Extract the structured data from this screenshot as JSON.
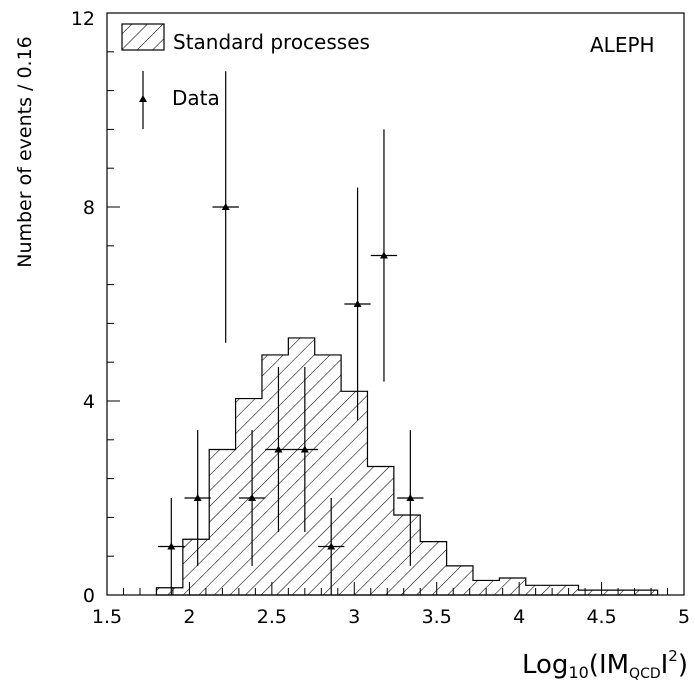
{
  "chart_data": {
    "type": "bar",
    "experiment_label": "ALEPH",
    "xlabel": "Log",
    "xlabel_sub": "10",
    "xlabel_open": "(IM",
    "xlabel_sub2": "QCD",
    "xlabel_close": "I",
    "xlabel_sup": "2",
    "xlabel_end": ")",
    "ylabel": "Number of events / 0.16",
    "xlim": [
      1.5,
      5
    ],
    "ylim": [
      0,
      12
    ],
    "x_ticks": [
      "1.5",
      "2",
      "2.5",
      "3",
      "3.5",
      "4",
      "4.5",
      "5"
    ],
    "x_tick_values": [
      1.5,
      2,
      2.5,
      3,
      3.5,
      4,
      4.5,
      5
    ],
    "y_ticks": [
      "0",
      "4",
      "8",
      "12"
    ],
    "y_tick_values": [
      0,
      4,
      8,
      12
    ],
    "legend": [
      {
        "label": "Standard processes",
        "kind": "hatched-histogram"
      },
      {
        "label": "Data",
        "kind": "points-with-errors"
      }
    ],
    "histogram": {
      "name": "Standard processes",
      "bin_edges": [
        1.8,
        1.96,
        2.12,
        2.28,
        2.44,
        2.6,
        2.76,
        2.92,
        3.08,
        3.24,
        3.4,
        3.56,
        3.72,
        3.88,
        4.04,
        4.2,
        4.36,
        4.52,
        4.68,
        4.84
      ],
      "values": [
        0.15,
        1.15,
        3.0,
        4.05,
        4.95,
        5.3,
        4.95,
        4.2,
        2.65,
        1.65,
        1.1,
        0.6,
        0.3,
        0.35,
        0.2,
        0.2,
        0.1,
        0.1,
        0.1
      ]
    },
    "data_points": {
      "name": "Data",
      "x": [
        1.89,
        2.05,
        2.22,
        2.38,
        2.54,
        2.7,
        2.86,
        3.02,
        3.18,
        3.34
      ],
      "y": [
        1,
        2,
        8,
        2,
        3,
        3,
        1,
        6,
        7,
        2
      ],
      "y_err_low": [
        1,
        1.4,
        2.8,
        1.4,
        1.7,
        1.7,
        1,
        2.4,
        2.6,
        1.4
      ],
      "y_err_high": [
        1,
        1.4,
        2.8,
        1.4,
        1.7,
        1.7,
        1,
        2.4,
        2.6,
        1.4
      ],
      "x_half_width": 0.08
    },
    "colors": {
      "line": "#000000",
      "background": "#ffffff"
    }
  }
}
